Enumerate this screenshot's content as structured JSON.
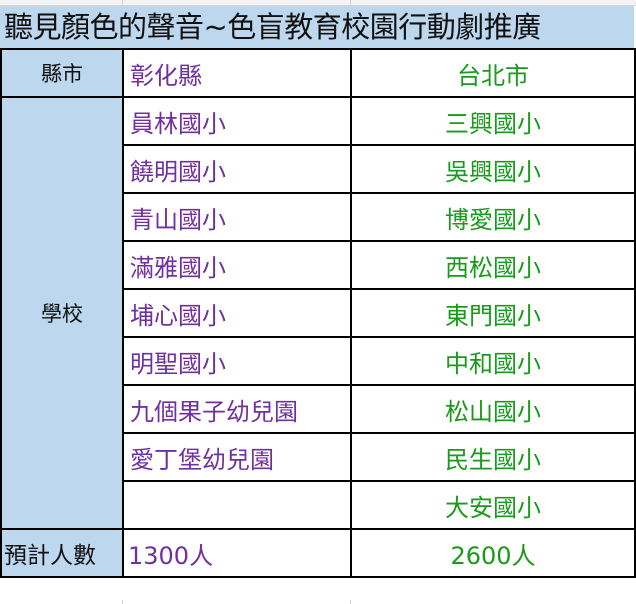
{
  "title": "聽見顏色的聲音~色盲教育校園行動劇推廣",
  "colors": {
    "header_bg": "#bdd7ee",
    "changhua_text": "#7030a0",
    "taipei_text": "#1a9a1a"
  },
  "table": {
    "county_label": "縣市",
    "counties": [
      "彰化縣",
      "台北市"
    ],
    "school_label": "學校",
    "schools": [
      [
        "員林國小",
        "三興國小"
      ],
      [
        "饒明國小",
        "吳興國小"
      ],
      [
        "青山國小",
        "博愛國小"
      ],
      [
        "滿雅國小",
        "西松國小"
      ],
      [
        "埔心國小",
        "東門國小"
      ],
      [
        "明聖國小",
        "中和國小"
      ],
      [
        "九個果子幼兒園",
        "松山國小"
      ],
      [
        "愛丁堡幼兒園",
        "民生國小"
      ],
      [
        "",
        "大安國小"
      ]
    ],
    "count_label": "預計人數",
    "counts": [
      "1300人",
      "2600人"
    ]
  }
}
